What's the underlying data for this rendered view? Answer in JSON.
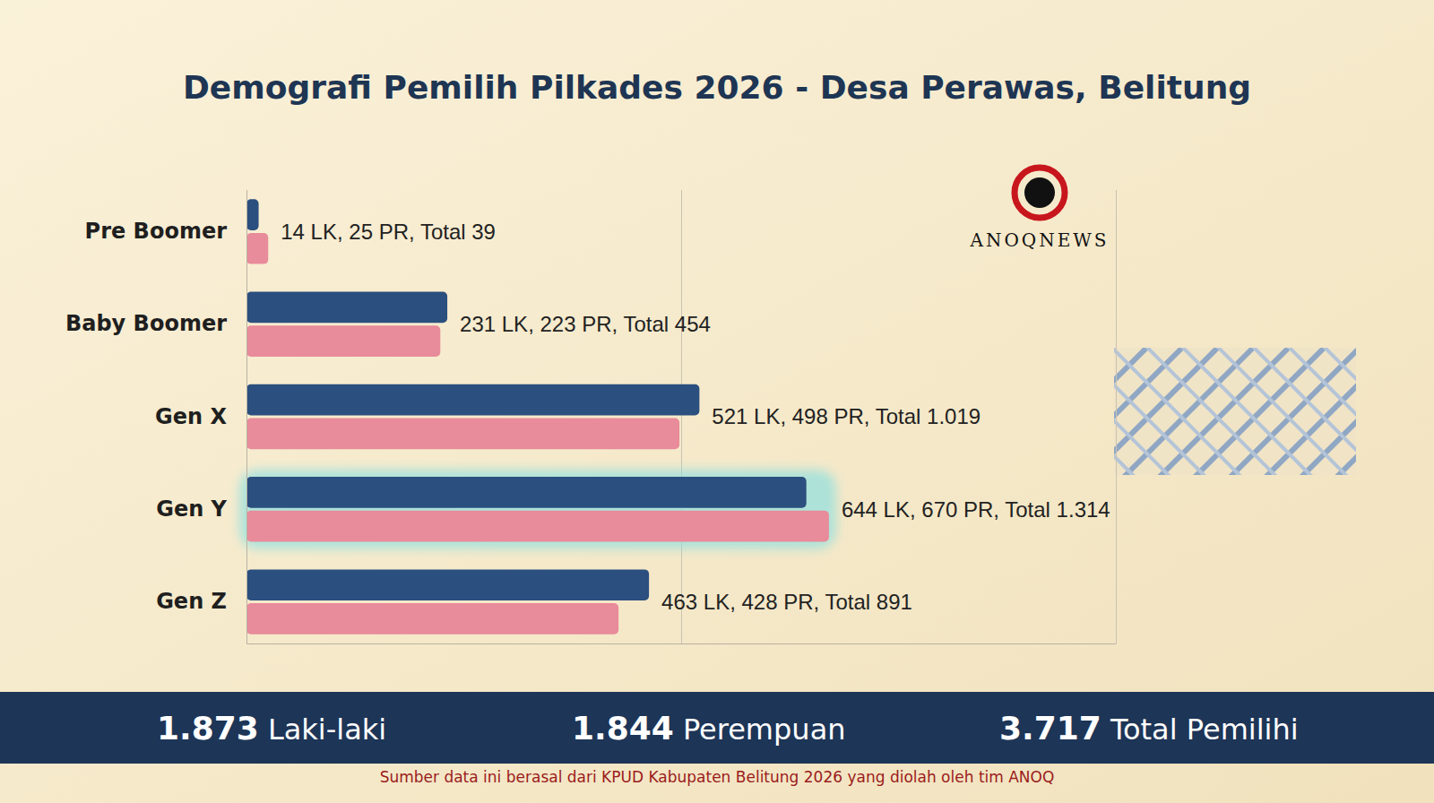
{
  "chart_data": {
    "type": "bar",
    "orientation": "horizontal",
    "title": "Demografi Pemilih Pilkades 2026 - Desa Perawas, Belitung",
    "categories": [
      "Pre Boomer",
      "Baby Boomer",
      "Gen X",
      "Gen Y",
      "Gen Z"
    ],
    "series": [
      {
        "name": "LK",
        "color": "#2b4f7e",
        "values": [
          14,
          231,
          521,
          644,
          463
        ]
      },
      {
        "name": "PR",
        "color": "#e88b9a",
        "values": [
          25,
          223,
          498,
          670,
          428
        ]
      }
    ],
    "xlim": [
      0,
      1000
    ],
    "xticks": [
      0,
      500,
      1000
    ],
    "grid": true,
    "tick_labels": "y",
    "annotations": [
      "14 LK, 25 PR, Total 39",
      "231 LK, 223 PR, Total 454",
      "521 LK, 498 PR, Total 1.019",
      "644 LK, 670 PR, Total 1.314",
      "463 LK, 428 PR, Total 891"
    ],
    "summary": [
      {
        "value": "1.873",
        "label": "Laki-laki"
      },
      {
        "value": "1.844",
        "label": "Perempuan"
      },
      {
        "value": "3.717",
        "label": "Total Pemilihi"
      }
    ],
    "source": "Sumber data ini berasal dari KPUD Kabupaten Belitung 2026 yang diolah oleh tim ANOQ",
    "logo": "ANOQNEWS"
  }
}
